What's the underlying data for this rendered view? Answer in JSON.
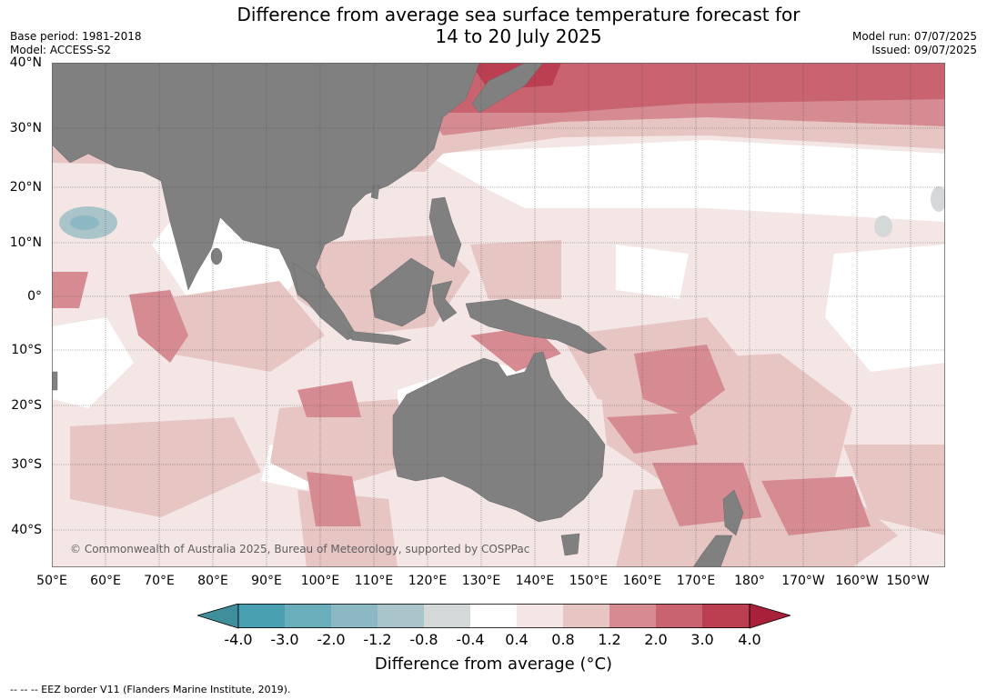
{
  "header": {
    "title_line1": "Difference from average sea surface temperature forecast for",
    "title_line2": "14 to 20 July 2025",
    "base_period": "Base period: 1981-2018",
    "model": "Model: ACCESS-S2",
    "model_run": "Model run: 07/07/2025",
    "issued": "Issued: 09/07/2025"
  },
  "map": {
    "latitude_labels": [
      "40°N",
      "30°N",
      "20°N",
      "10°N",
      "0°",
      "10°S",
      "20°S",
      "30°S",
      "40°S"
    ],
    "longitude_labels": [
      "50°E",
      "60°E",
      "70°E",
      "80°E",
      "90°E",
      "100°E",
      "110°E",
      "120°E",
      "130°E",
      "140°E",
      "150°E",
      "160°E",
      "170°E",
      "180°",
      "170°W",
      "160°W",
      "150°W"
    ],
    "copyright": "© Commonwealth of Australia 2025, Bureau of Meteorology, supported by COSPPac",
    "land_color": "#808080",
    "ocean_base_color": "#f3e6e5"
  },
  "colorbar": {
    "ticks": [
      "-4.0",
      "-3.0",
      "-2.0",
      "-1.2",
      "-0.8",
      "-0.4",
      "0.4",
      "0.8",
      "1.2",
      "2.0",
      "3.0",
      "4.0"
    ],
    "colors": [
      "#3e8f9b",
      "#48a0b0",
      "#6aaebb",
      "#8bb8c3",
      "#aac5ca",
      "#d4d8d9",
      "#ffffff",
      "#f3e6e5",
      "#e6c5c3",
      "#d68b93",
      "#c9636f",
      "#bb3e51",
      "#a8203a"
    ],
    "label": "Difference from average (°C)"
  },
  "footer": {
    "eez_note": "--  --  -- EEZ border V11 (Flanders Marine Institute, 2019)."
  }
}
